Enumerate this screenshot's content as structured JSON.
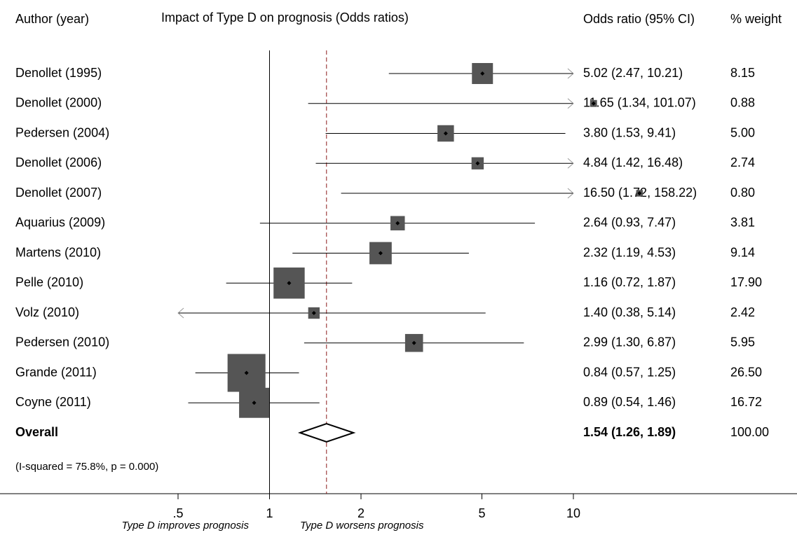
{
  "chart_data": {
    "type": "forest",
    "columns": [
      "Author (year)",
      "Impact of Type D on prognosis (Odds ratios)",
      "Odds ratio (95% CI)",
      "% weight"
    ],
    "categories": [
      "Denollet (1995)",
      "Denollet (2000)",
      "Pedersen (2004)",
      "Denollet (2006)",
      "Denollet (2007)",
      "Aquarius (2009)",
      "Martens (2010)",
      "Pelle (2010)",
      "Volz (2010)",
      "Pedersen (2010)",
      "Grande (2011)",
      "Coyne (2011)"
    ],
    "values": [
      5.02,
      11.65,
      3.8,
      4.84,
      16.5,
      2.64,
      2.32,
      1.16,
      1.4,
      2.99,
      0.84,
      0.89
    ],
    "ci_low": [
      2.47,
      1.34,
      1.53,
      1.42,
      1.72,
      0.93,
      1.19,
      0.72,
      0.38,
      1.3,
      0.57,
      0.54
    ],
    "ci_high": [
      10.21,
      101.07,
      9.41,
      16.48,
      158.22,
      7.47,
      4.53,
      1.87,
      5.14,
      6.87,
      1.25,
      1.46
    ],
    "value_labels": [
      "5.02 (2.47, 10.21)",
      "11.65 (1.34, 101.07)",
      "3.80 (1.53, 9.41)",
      "4.84 (1.42, 16.48)",
      "16.50 (1.72, 158.22)",
      "2.64 (0.93, 7.47)",
      "2.32 (1.19, 4.53)",
      "1.16 (0.72, 1.87)",
      "1.40 (0.38, 5.14)",
      "2.99 (1.30, 6.87)",
      "0.84 (0.57, 1.25)",
      "0.89 (0.54, 1.46)"
    ],
    "weights": [
      8.15,
      0.88,
      5.0,
      2.74,
      0.8,
      3.81,
      9.14,
      17.9,
      2.42,
      5.95,
      26.5,
      16.72
    ],
    "weight_labels": [
      "8.15",
      "0.88",
      "5.00",
      "2.74",
      "0.80",
      "3.81",
      "9.14",
      "17.90",
      "2.42",
      "5.95",
      "26.50",
      "16.72"
    ],
    "overall": {
      "label": "Overall",
      "value": 1.54,
      "ci_low": 1.26,
      "ci_high": 1.89,
      "value_label": "1.54 (1.26, 1.89)",
      "weight": 100,
      "weight_label": "100.00"
    },
    "note": "(I-squared = 75.8%, p = 0.000)",
    "x_labels": [
      "Type D improves prognosis",
      "Type D worsens prognosis"
    ],
    "xlim": [
      0.5,
      10
    ],
    "xticks": [
      {
        "value": 0.5,
        "label": ".5"
      },
      1,
      2,
      5,
      10
    ],
    "log_scale": true,
    "reference_line": 1,
    "box_color": "#555555",
    "overall_line_color": "#8b1a1a"
  }
}
